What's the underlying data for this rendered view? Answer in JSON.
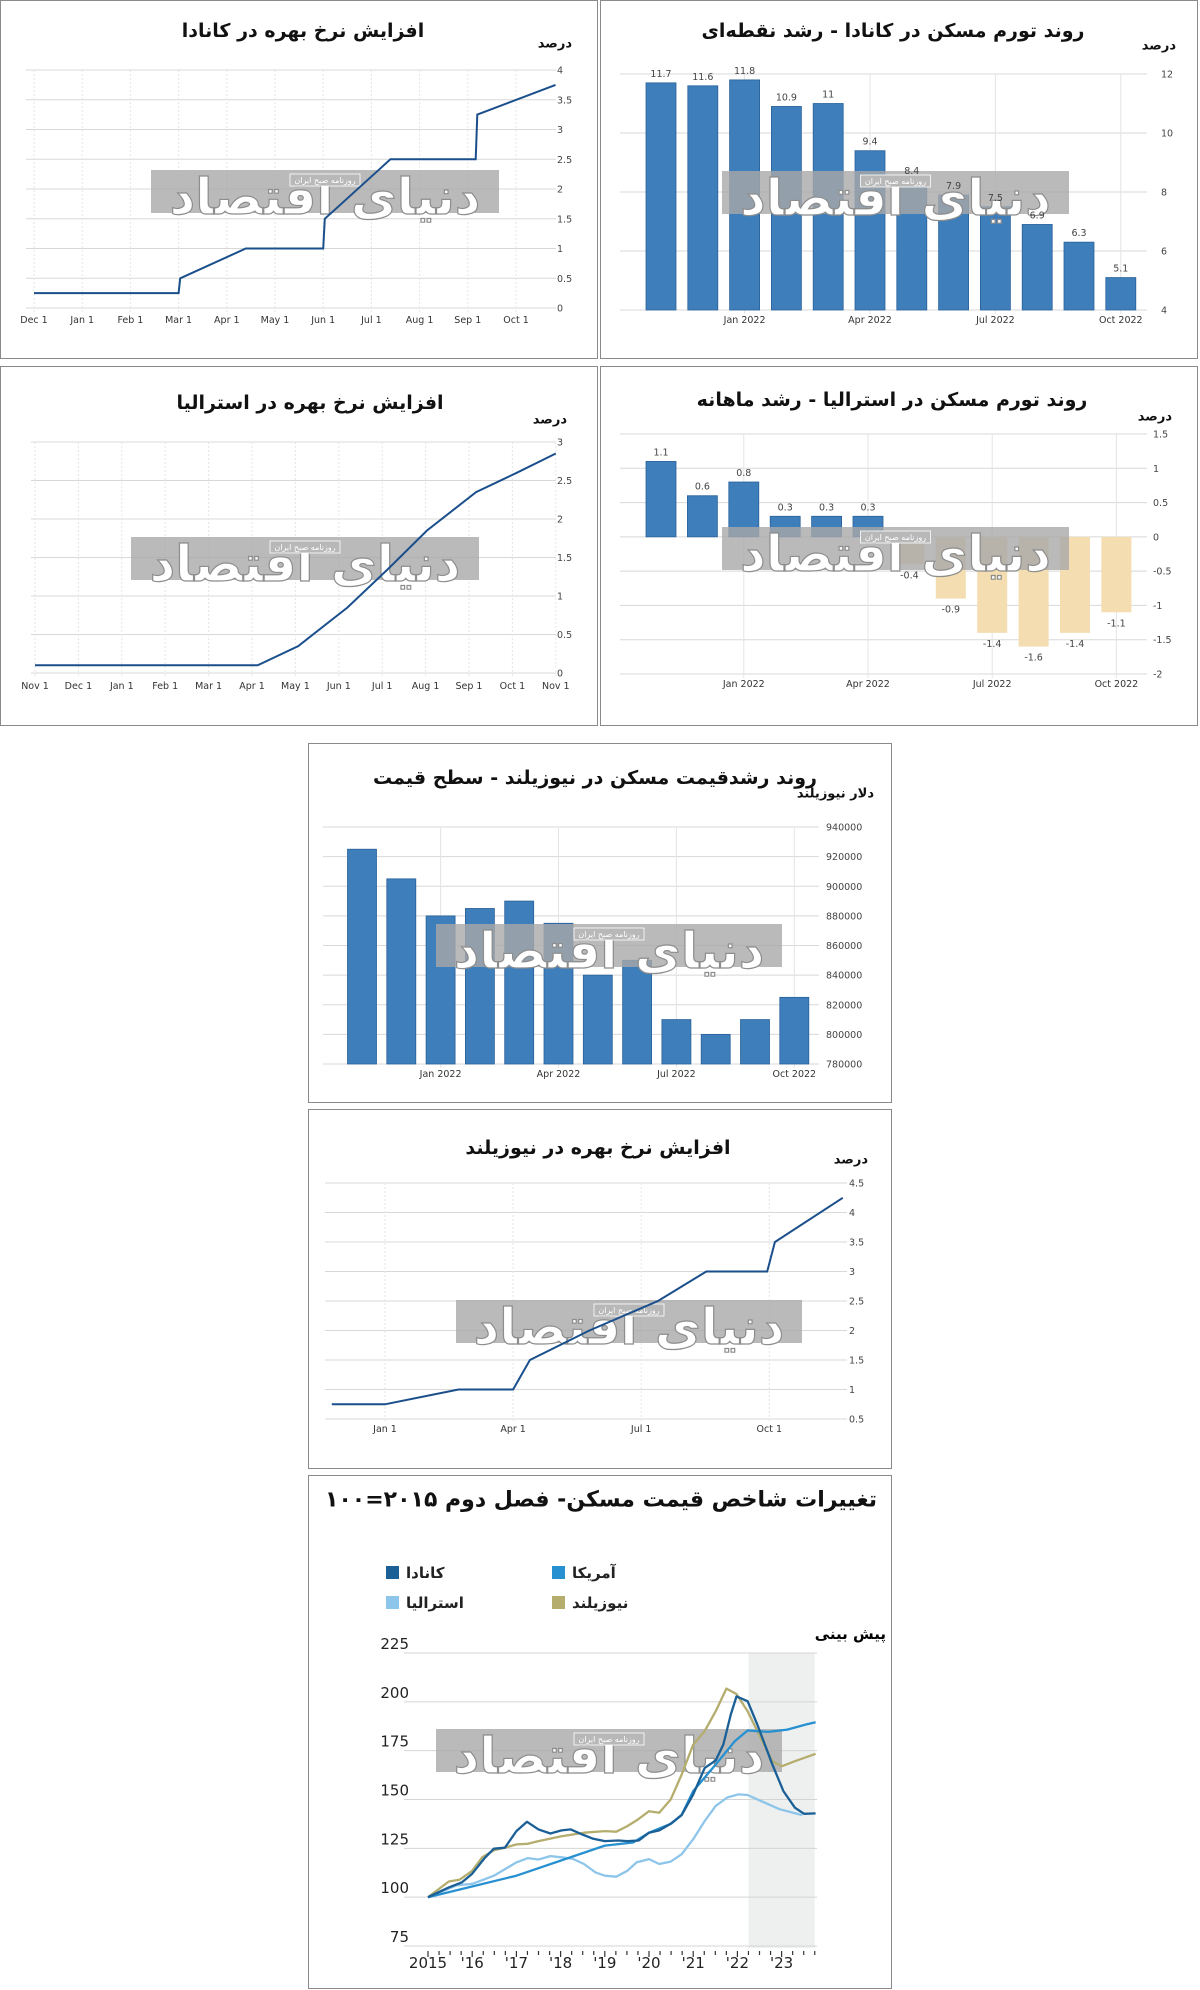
{
  "watermark": {
    "logo_text": "دنیای اقتصاد",
    "sub_text": "روزنامه صبح ایران"
  },
  "colors": {
    "bar_blue": "#3d7ebb",
    "bar_negative": "#f3ddb1",
    "rate_line": "#1a4f8c",
    "grid": "#e2e2e2"
  },
  "chart_data": [
    {
      "type": "line",
      "title": "افزایش نرخ بهره در کانادا",
      "ylabel": "درصد",
      "ylim": [
        0,
        4
      ],
      "yticks": [
        "0",
        "0.5",
        "1",
        "1.5",
        "2",
        "2.5",
        "3",
        "3.5",
        "4"
      ],
      "x_ticks": [
        {
          "label": "Dec 1",
          "date": "2021-12-01"
        },
        {
          "label": "Jan 1",
          "date": "2022-01-01"
        },
        {
          "label": "Feb 1",
          "date": "2022-02-01"
        },
        {
          "label": "Mar 1",
          "date": "2022-03-01"
        },
        {
          "label": "Apr 1",
          "date": "2022-04-01"
        },
        {
          "label": "May 1",
          "date": "2022-05-01"
        },
        {
          "label": "Jun 1",
          "date": "2022-06-01"
        },
        {
          "label": "Jul 1",
          "date": "2022-07-01"
        },
        {
          "label": "Aug 1",
          "date": "2022-08-01"
        },
        {
          "label": "Sep 1",
          "date": "2022-09-01"
        },
        {
          "label": "Oct 1",
          "date": "2022-10-01"
        }
      ],
      "points": [
        [
          "2021-12-01",
          0.25
        ],
        [
          "2022-03-01",
          0.25
        ],
        [
          "2022-03-02",
          0.5
        ],
        [
          "2022-04-13",
          1.0
        ],
        [
          "2022-06-01",
          1.0
        ],
        [
          "2022-06-02",
          1.5
        ],
        [
          "2022-07-13",
          2.5
        ],
        [
          "2022-09-06",
          2.5
        ],
        [
          "2022-09-07",
          3.25
        ],
        [
          "2022-10-26",
          3.75
        ]
      ],
      "grid": true
    },
    {
      "type": "bar",
      "title": "روند تورم مسکن در کانادا - رشد نقطه‌ای",
      "ylabel": "درصد",
      "ylim": [
        4,
        12
      ],
      "yticks": [
        "4",
        "6",
        "8",
        "10",
        "12"
      ],
      "categories": [
        "Nov 2021",
        "Dec 2021",
        "Jan 2022",
        "Feb 2022",
        "Mar 2022",
        "Apr 2022",
        "May 2022",
        "Jun 2022",
        "Jul 2022",
        "Aug 2022",
        "Sep 2022",
        "Oct 2022"
      ],
      "values": [
        11.7,
        11.6,
        11.8,
        10.9,
        11,
        9.4,
        8.4,
        7.9,
        7.5,
        6.9,
        6.3,
        5.1
      ],
      "value_labels": [
        "11.7",
        "11.6",
        "11.8",
        "10.9",
        "11",
        "9.4",
        "8.4",
        "7.9",
        "7.5",
        "6.9",
        "6.3",
        "5.1"
      ],
      "x_ticks": [
        "Jan 2022",
        "Apr 2022",
        "Jul 2022",
        "Oct 2022"
      ],
      "grid": true
    },
    {
      "type": "line",
      "title": "افزایش نرخ بهره در استرالیا",
      "ylabel": "درصد",
      "ylim": [
        0,
        3
      ],
      "yticks": [
        "0",
        "0.5",
        "1",
        "1.5",
        "2",
        "2.5",
        "3"
      ],
      "x_ticks": [
        {
          "label": "Nov 1",
          "date": "2021-11-01"
        },
        {
          "label": "Dec 1",
          "date": "2021-12-01"
        },
        {
          "label": "Jan 1",
          "date": "2022-01-01"
        },
        {
          "label": "Feb 1",
          "date": "2022-02-01"
        },
        {
          "label": "Mar 1",
          "date": "2022-03-01"
        },
        {
          "label": "Apr 1",
          "date": "2022-04-01"
        },
        {
          "label": "May 1",
          "date": "2022-05-01"
        },
        {
          "label": "Jun 1",
          "date": "2022-06-01"
        },
        {
          "label": "Jul 1",
          "date": "2022-07-01"
        },
        {
          "label": "Aug 1",
          "date": "2022-08-01"
        },
        {
          "label": "Sep 1",
          "date": "2022-09-01"
        },
        {
          "label": "Oct 1",
          "date": "2022-10-01"
        },
        {
          "label": "Nov 1",
          "date": "2022-11-01"
        }
      ],
      "points": [
        [
          "2021-11-01",
          0.1
        ],
        [
          "2022-04-05",
          0.1
        ],
        [
          "2022-05-03",
          0.35
        ],
        [
          "2022-06-07",
          0.85
        ],
        [
          "2022-07-05",
          1.35
        ],
        [
          "2022-08-02",
          1.85
        ],
        [
          "2022-09-06",
          2.35
        ],
        [
          "2022-10-04",
          2.6
        ],
        [
          "2022-11-01",
          2.85
        ]
      ],
      "grid": true
    },
    {
      "type": "bar",
      "title": "روند تورم مسکن در استرالیا - رشد ماهانه",
      "ylabel": "درصد",
      "ylim": [
        -2,
        1.5
      ],
      "yticks": [
        "-2",
        "-1.5",
        "-1",
        "-0.5",
        "0",
        "0.5",
        "1",
        "1.5"
      ],
      "categories": [
        "Nov 2021",
        "Dec 2021",
        "Jan 2022",
        "Feb 2022",
        "Mar 2022",
        "Apr 2022",
        "May 2022",
        "Jun 2022",
        "Jul 2022",
        "Aug 2022",
        "Sep 2022",
        "Oct 2022"
      ],
      "values": [
        1.1,
        0.6,
        0.8,
        0.3,
        0.3,
        0.3,
        -0.4,
        -0.9,
        -1.4,
        -1.6,
        -1.4,
        -1.1
      ],
      "value_labels": [
        "1.1",
        "0.6",
        "0.8",
        "0.3",
        "0.3",
        "0.3",
        "-0.4",
        "-0.9",
        "-1.4",
        "-1.6",
        "-1.4",
        "-1.1"
      ],
      "x_ticks": [
        "Jan 2022",
        "Apr 2022",
        "Jul 2022",
        "Oct 2022"
      ],
      "grid": true
    },
    {
      "type": "bar",
      "title": "روند رشدقیمت مسکن در نیوزیلند - سطح قیمت",
      "ylabel": "دلار نیوزیلند",
      "ylim": [
        780000,
        940000
      ],
      "yticks": [
        "780000",
        "800000",
        "820000",
        "840000",
        "860000",
        "880000",
        "900000",
        "920000",
        "940000"
      ],
      "categories": [
        "Nov 2021",
        "Dec 2021",
        "Jan 2022",
        "Feb 2022",
        "Mar 2022",
        "Apr 2022",
        "May 2022",
        "Jun 2022",
        "Jul 2022",
        "Aug 2022",
        "Sep 2022",
        "Oct 2022"
      ],
      "values": [
        925000,
        905000,
        880000,
        885000,
        890000,
        875000,
        840000,
        850000,
        810000,
        800000,
        810000,
        825000
      ],
      "x_ticks": [
        "Jan 2022",
        "Apr 2022",
        "Jul 2022",
        "Oct 2022"
      ],
      "grid": true
    },
    {
      "type": "line",
      "title": "افزایش نرخ بهره در نیوزیلند",
      "ylabel": "درصد",
      "ylim": [
        0.5,
        4.5
      ],
      "yticks": [
        "0.5",
        "1",
        "1.5",
        "2",
        "2.5",
        "3",
        "3.5",
        "4",
        "4.5"
      ],
      "x_ticks": [
        {
          "label": "Jan 1",
          "date": "2022-01-01"
        },
        {
          "label": "Apr 1",
          "date": "2022-04-01"
        },
        {
          "label": "Jul 1",
          "date": "2022-07-01"
        },
        {
          "label": "Oct 1",
          "date": "2022-10-01"
        }
      ],
      "points": [
        [
          "2021-11-24",
          0.75
        ],
        [
          "2022-01-01",
          0.75
        ],
        [
          "2022-02-23",
          1.0
        ],
        [
          "2022-04-01",
          1.0
        ],
        [
          "2022-04-13",
          1.5
        ],
        [
          "2022-05-25",
          2.0
        ],
        [
          "2022-07-13",
          2.5
        ],
        [
          "2022-08-17",
          3.0
        ],
        [
          "2022-09-30",
          3.0
        ],
        [
          "2022-10-05",
          3.5
        ],
        [
          "2022-11-23",
          4.25
        ]
      ],
      "grid": true
    },
    {
      "type": "line",
      "title": "تغییرات شاخص قیمت مسکن- فصل دوم ۲۰۱۵=۱۰۰",
      "ylim": [
        75,
        225
      ],
      "yticks": [
        "75",
        "100",
        "125",
        "150",
        "175",
        "200",
        "225"
      ],
      "x_ticks": [
        {
          "label": "2015",
          "x": 2015
        },
        {
          "label": "'16",
          "x": 2016
        },
        {
          "label": "'17",
          "x": 2017
        },
        {
          "label": "'18",
          "x": 2018
        },
        {
          "label": "'19",
          "x": 2019
        },
        {
          "label": "'20",
          "x": 2020
        },
        {
          "label": "'21",
          "x": 2021
        },
        {
          "label": "'22",
          "x": 2022
        },
        {
          "label": "'23",
          "x": 2023
        }
      ],
      "forecast": {
        "label": "پیش بینی",
        "from": 2022.25,
        "to": 2023.75
      },
      "legend_placement": "top",
      "grid": true,
      "series": [
        {
          "name": "کانادا",
          "color": "#1a5f96",
          "points": [
            [
              2015,
              100
            ],
            [
              2015.47,
              105
            ],
            [
              2015.77,
              107.6
            ],
            [
              2016,
              112
            ],
            [
              2016.28,
              120
            ],
            [
              2016.49,
              124.8
            ],
            [
              2016.74,
              125.3
            ],
            [
              2017,
              133.8
            ],
            [
              2017.24,
              138.6
            ],
            [
              2017.5,
              134.7
            ],
            [
              2017.77,
              132.6
            ],
            [
              2018.02,
              134.2
            ],
            [
              2018.23,
              134.7
            ],
            [
              2018.49,
              132.1
            ],
            [
              2018.74,
              129.9
            ],
            [
              2019,
              128.7
            ],
            [
              2019.3,
              129
            ],
            [
              2019.51,
              128.7
            ],
            [
              2019.77,
              129
            ],
            [
              2020,
              133
            ],
            [
              2020.23,
              134.2
            ],
            [
              2020.49,
              137.6
            ],
            [
              2020.74,
              142
            ],
            [
              2021,
              152.6
            ],
            [
              2021.26,
              166.2
            ],
            [
              2021.51,
              170
            ],
            [
              2021.68,
              178.1
            ],
            [
              2021.85,
              193.5
            ],
            [
              2021.98,
              202.8
            ],
            [
              2022.23,
              200.3
            ],
            [
              2022.45,
              188.4
            ],
            [
              2022.79,
              168
            ],
            [
              2023.04,
              154.3
            ],
            [
              2023.3,
              145.8
            ],
            [
              2023.51,
              142.7
            ],
            [
              2023.77,
              142.9
            ]
          ]
        },
        {
          "name": "آمریکا",
          "color": "#2790d0",
          "points": [
            [
              2015,
              100
            ],
            [
              2017,
              111
            ],
            [
              2019,
              126.4
            ],
            [
              2019.64,
              128
            ],
            [
              2020,
              133
            ],
            [
              2020.5,
              137.6
            ],
            [
              2020.74,
              142.2
            ],
            [
              2021,
              154.3
            ],
            [
              2021.51,
              167.9
            ],
            [
              2021.94,
              179.8
            ],
            [
              2022.23,
              185.3
            ],
            [
              2022.7,
              184.6
            ],
            [
              2023.13,
              185.8
            ],
            [
              2023.55,
              188.4
            ],
            [
              2023.77,
              189.5
            ]
          ]
        },
        {
          "name": "استرالیا",
          "color": "#8ec5ea",
          "points": [
            [
              2015,
              100
            ],
            [
              2015.64,
              106
            ],
            [
              2016,
              106.8
            ],
            [
              2016.49,
              111
            ],
            [
              2017,
              117.8
            ],
            [
              2017.26,
              120
            ],
            [
              2017.5,
              119.3
            ],
            [
              2017.77,
              121
            ],
            [
              2018.02,
              120.4
            ],
            [
              2018.28,
              119.6
            ],
            [
              2018.53,
              117
            ],
            [
              2018.79,
              112.7
            ],
            [
              2019,
              111
            ],
            [
              2019.26,
              110.5
            ],
            [
              2019.51,
              113.5
            ],
            [
              2019.72,
              117.8
            ],
            [
              2020,
              119.5
            ],
            [
              2020.23,
              117
            ],
            [
              2020.49,
              118.2
            ],
            [
              2020.74,
              122
            ],
            [
              2021,
              129.7
            ],
            [
              2021.26,
              139
            ],
            [
              2021.51,
              146.7
            ],
            [
              2021.77,
              151
            ],
            [
              2022.02,
              152.6
            ],
            [
              2022.23,
              152.3
            ],
            [
              2022.53,
              149.3
            ],
            [
              2022.96,
              145
            ],
            [
              2023.3,
              143
            ],
            [
              2023.47,
              142
            ]
          ]
        },
        {
          "name": "نیوزیلند",
          "color": "#b5ad6e",
          "points": [
            [
              2015,
              100
            ],
            [
              2015.47,
              108
            ],
            [
              2015.72,
              109
            ],
            [
              2016,
              113.5
            ],
            [
              2016.23,
              120.5
            ],
            [
              2016.49,
              124
            ],
            [
              2016.74,
              125.3
            ],
            [
              2017,
              127
            ],
            [
              2017.26,
              127.3
            ],
            [
              2017.5,
              128.7
            ],
            [
              2018.02,
              131.2
            ],
            [
              2018.53,
              133
            ],
            [
              2019,
              133.8
            ],
            [
              2019.26,
              133.5
            ],
            [
              2019.51,
              136.4
            ],
            [
              2019.72,
              139.3
            ],
            [
              2020,
              144
            ],
            [
              2020.23,
              143.2
            ],
            [
              2020.49,
              150
            ],
            [
              2020.74,
              162.8
            ],
            [
              2021,
              178.1
            ],
            [
              2021.26,
              185
            ],
            [
              2021.51,
              195.2
            ],
            [
              2021.75,
              206.8
            ],
            [
              2021.98,
              204
            ],
            [
              2022.23,
              195.2
            ],
            [
              2022.53,
              181.5
            ],
            [
              2022.79,
              169.6
            ],
            [
              2023,
              167
            ],
            [
              2023.3,
              169.6
            ],
            [
              2023.77,
              173.4
            ]
          ]
        }
      ]
    }
  ]
}
